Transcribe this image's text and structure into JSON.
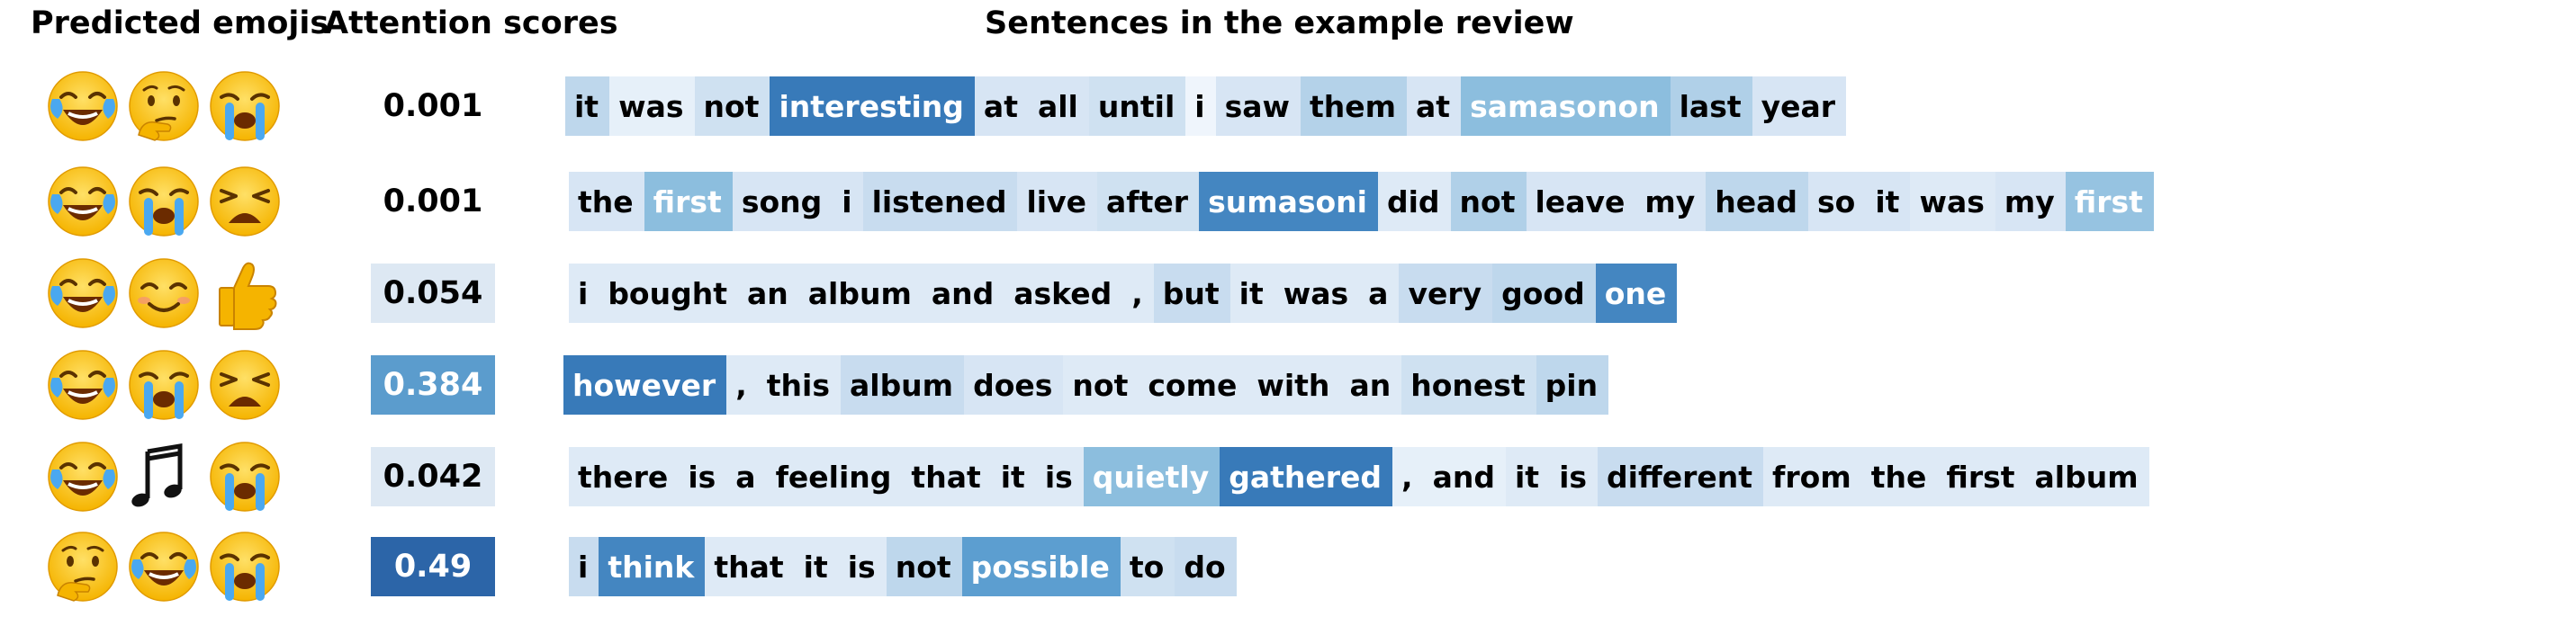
{
  "headers": {
    "emojis": "Predicted emojis",
    "scores": "Attention scores",
    "sentences": "Sentences in the example review"
  },
  "colors": {
    "scale": [
      "#ffffff",
      "#dde8f3",
      "#c5d9eb",
      "#90bddc",
      "#5b9ccd",
      "#3e7fbb",
      "#2c65a8"
    ],
    "text_dark": "#000000",
    "text_light": "#ffffff"
  },
  "rows": [
    {
      "emojis": [
        "face-with-tears-of-joy",
        "thinking-face",
        "loudly-crying-face"
      ],
      "score": "0.001",
      "score_level": 0,
      "tokens": [
        {
          "t": "it",
          "w": 0.35
        },
        {
          "t": "was",
          "w": 0.1
        },
        {
          "t": "not",
          "w": 0.25
        },
        {
          "t": "interesting",
          "w": 0.9
        },
        {
          "t": "at",
          "w": 0.2
        },
        {
          "t": "all",
          "w": 0.2
        },
        {
          "t": "until",
          "w": 0.25
        },
        {
          "t": "i",
          "w": 0.05
        },
        {
          "t": "saw",
          "w": 0.2
        },
        {
          "t": "them",
          "w": 0.4
        },
        {
          "t": "at",
          "w": 0.2
        },
        {
          "t": "samasonon",
          "w": 0.6
        },
        {
          "t": "last",
          "w": 0.42
        },
        {
          "t": "year",
          "w": 0.2
        }
      ]
    },
    {
      "emojis": [
        "face-with-tears-of-joy",
        "loudly-crying-face",
        "weary-face"
      ],
      "score": "0.001",
      "score_level": 0,
      "tokens": [
        {
          "t": "the",
          "w": 0.2
        },
        {
          "t": "first",
          "w": 0.6
        },
        {
          "t": "song",
          "w": 0.2
        },
        {
          "t": "i",
          "w": 0.2
        },
        {
          "t": "listened",
          "w": 0.3
        },
        {
          "t": "live",
          "w": 0.2
        },
        {
          "t": "after",
          "w": 0.25
        },
        {
          "t": "sumasoni",
          "w": 0.85
        },
        {
          "t": "did",
          "w": 0.15
        },
        {
          "t": "not",
          "w": 0.42
        },
        {
          "t": "leave",
          "w": 0.2
        },
        {
          "t": "my",
          "w": 0.2
        },
        {
          "t": "head",
          "w": 0.35
        },
        {
          "t": "so",
          "w": 0.2
        },
        {
          "t": "it",
          "w": 0.2
        },
        {
          "t": "was",
          "w": 0.15
        },
        {
          "t": "my",
          "w": 0.2
        },
        {
          "t": "first",
          "w": 0.55
        }
      ]
    },
    {
      "emojis": [
        "face-with-tears-of-joy",
        "smiling-face",
        "thumbs-up"
      ],
      "score": "0.054",
      "score_level": 1,
      "tokens": [
        {
          "t": "i",
          "w": 0.15
        },
        {
          "t": "bought",
          "w": 0.15
        },
        {
          "t": "an",
          "w": 0.15
        },
        {
          "t": "album",
          "w": 0.15
        },
        {
          "t": "and",
          "w": 0.15
        },
        {
          "t": "asked",
          "w": 0.15
        },
        {
          "t": ",",
          "w": 0.15
        },
        {
          "t": "but",
          "w": 0.3
        },
        {
          "t": "it",
          "w": 0.15
        },
        {
          "t": "was",
          "w": 0.15
        },
        {
          "t": "a",
          "w": 0.15
        },
        {
          "t": "very",
          "w": 0.3
        },
        {
          "t": "good",
          "w": 0.35
        },
        {
          "t": "one",
          "w": 0.85
        }
      ]
    },
    {
      "emojis": [
        "face-with-tears-of-joy",
        "loudly-crying-face",
        "weary-face"
      ],
      "score": "0.384",
      "score_level": 4,
      "tokens": [
        {
          "t": "however",
          "w": 0.9
        },
        {
          "t": ",",
          "w": 0.15
        },
        {
          "t": "this",
          "w": 0.15
        },
        {
          "t": "album",
          "w": 0.3
        },
        {
          "t": "does",
          "w": 0.2
        },
        {
          "t": "not",
          "w": 0.15
        },
        {
          "t": "come",
          "w": 0.15
        },
        {
          "t": "with",
          "w": 0.15
        },
        {
          "t": "an",
          "w": 0.15
        },
        {
          "t": "honest",
          "w": 0.25
        },
        {
          "t": "pin",
          "w": 0.35
        }
      ]
    },
    {
      "emojis": [
        "face-with-tears-of-joy",
        "musical-notes",
        "loudly-crying-face"
      ],
      "score": "0.042",
      "score_level": 1,
      "tokens": [
        {
          "t": "there",
          "w": 0.15
        },
        {
          "t": "is",
          "w": 0.15
        },
        {
          "t": "a",
          "w": 0.15
        },
        {
          "t": "feeling",
          "w": 0.15
        },
        {
          "t": "that",
          "w": 0.15
        },
        {
          "t": "it",
          "w": 0.15
        },
        {
          "t": "is",
          "w": 0.15
        },
        {
          "t": "quietly",
          "w": 0.6
        },
        {
          "t": "gathered",
          "w": 0.9
        },
        {
          "t": ",",
          "w": 0.1
        },
        {
          "t": "and",
          "w": 0.1
        },
        {
          "t": "it",
          "w": 0.15
        },
        {
          "t": "is",
          "w": 0.15
        },
        {
          "t": "different",
          "w": 0.3
        },
        {
          "t": "from",
          "w": 0.15
        },
        {
          "t": "the",
          "w": 0.15
        },
        {
          "t": "first",
          "w": 0.15
        },
        {
          "t": "album",
          "w": 0.15
        }
      ]
    },
    {
      "emojis": [
        "thinking-face",
        "face-with-tears-of-joy",
        "loudly-crying-face"
      ],
      "score": "0.49",
      "score_level": 6,
      "tokens": [
        {
          "t": "i",
          "w": 0.3
        },
        {
          "t": "think",
          "w": 0.85
        },
        {
          "t": "that",
          "w": 0.15
        },
        {
          "t": "it",
          "w": 0.15
        },
        {
          "t": "is",
          "w": 0.15
        },
        {
          "t": "not",
          "w": 0.35
        },
        {
          "t": "possible",
          "w": 0.75
        },
        {
          "t": "to",
          "w": 0.25
        },
        {
          "t": "do",
          "w": 0.3
        }
      ]
    }
  ]
}
